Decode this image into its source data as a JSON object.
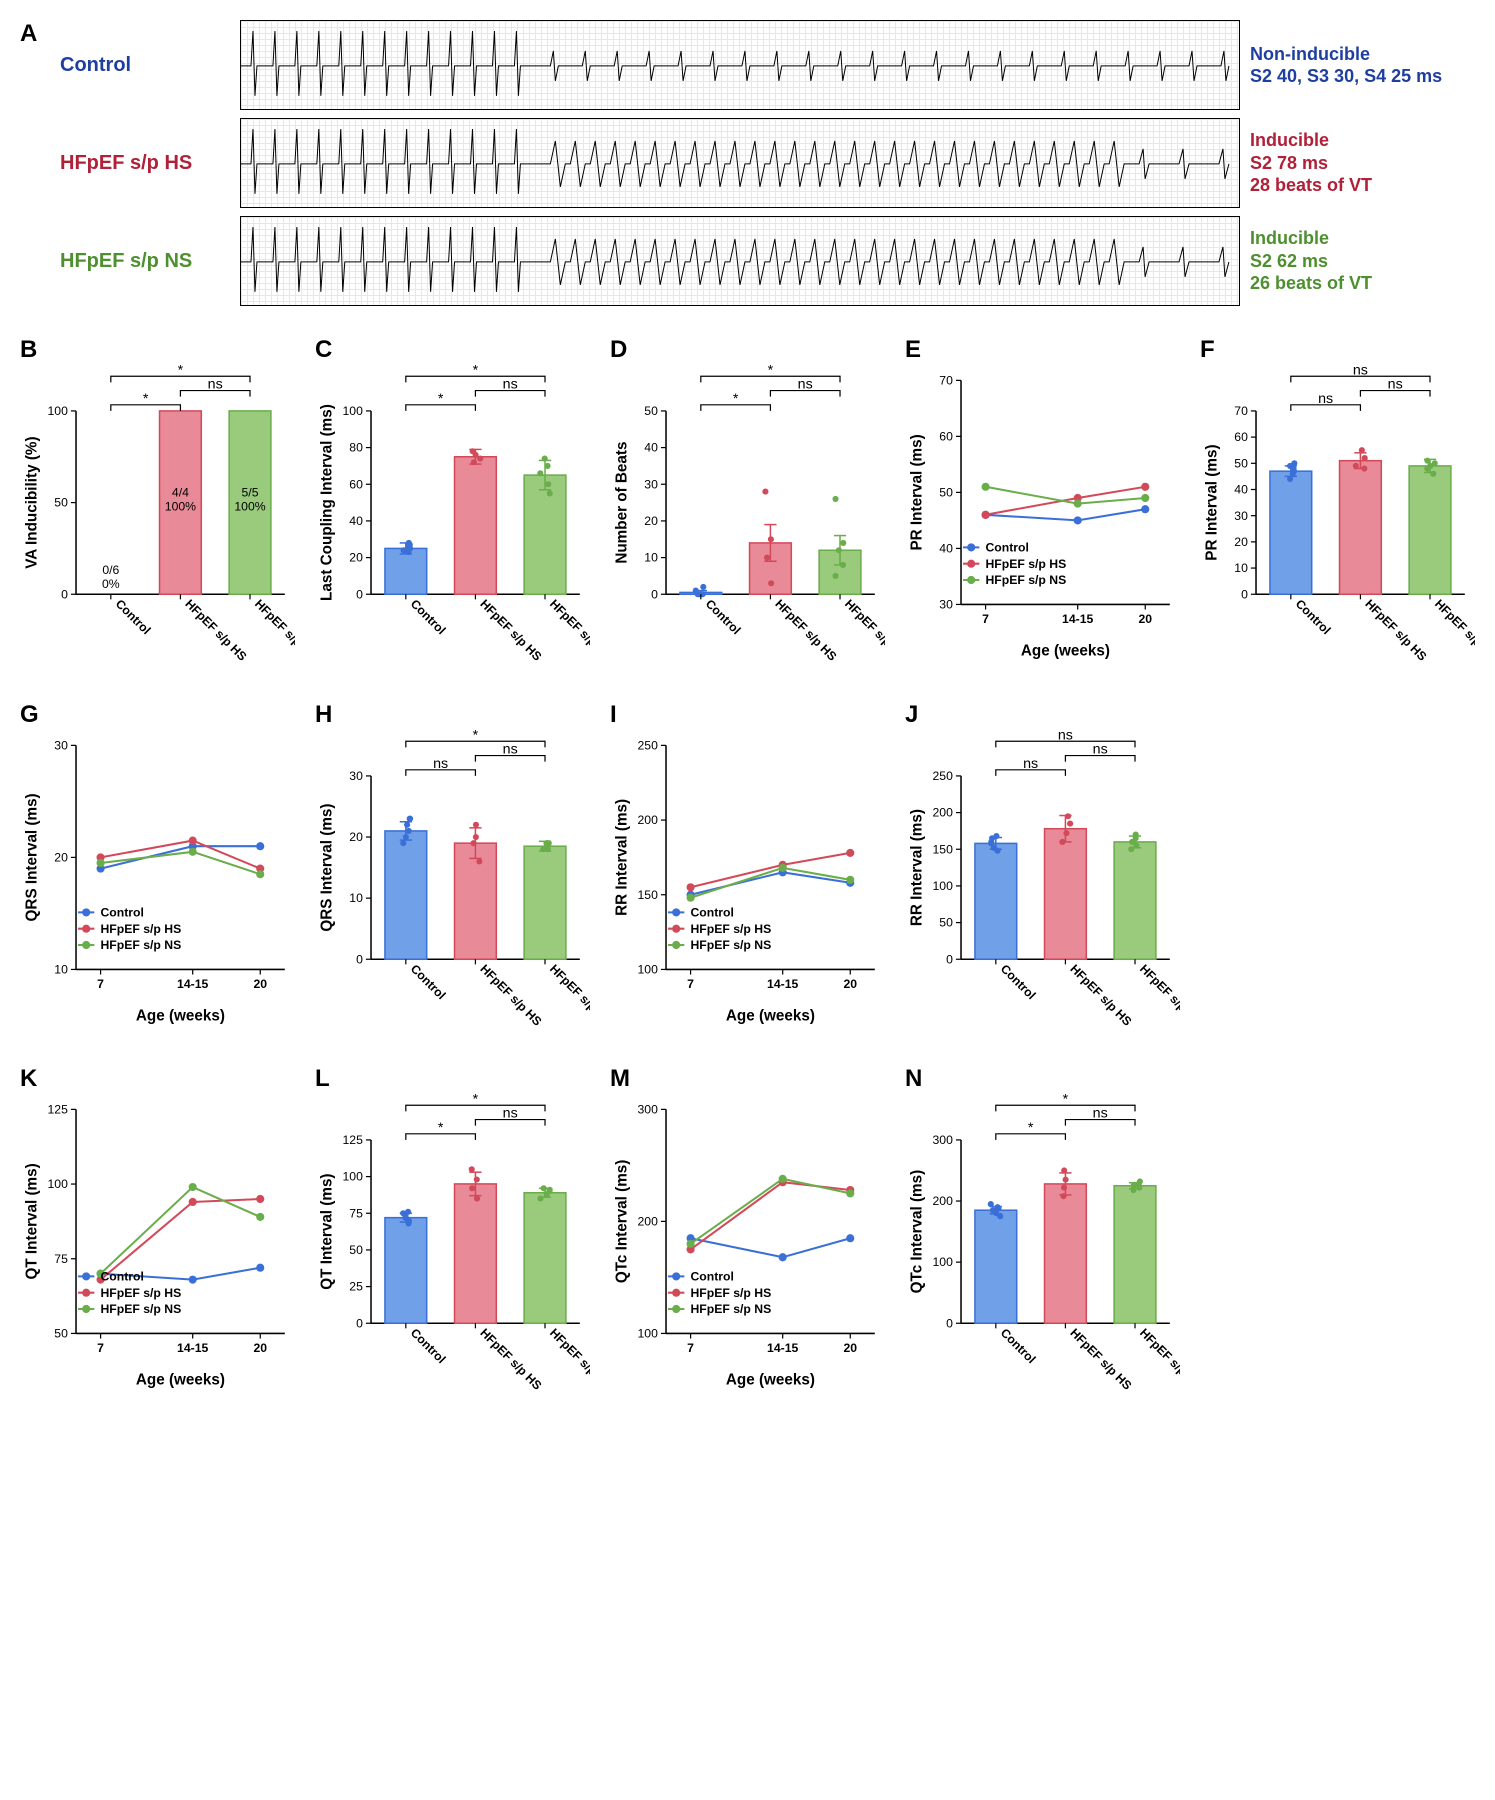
{
  "colors": {
    "control": "#3a6fd8",
    "hs": "#d24a5a",
    "ns": "#6aad4b",
    "control_fill": "#6fa0e8",
    "hs_fill": "#e98a98",
    "ns_fill": "#9acb7d",
    "axis": "#000000",
    "ecg_grid": "#f7c8e0"
  },
  "groups": {
    "control": "Control",
    "hs": "HFpEF s/p HS",
    "ns": "HFpEF s/p NS"
  },
  "panelA": {
    "label": "A",
    "rows": [
      {
        "left": "Control",
        "color": "#1f3fa0",
        "right": [
          "Non-inducible",
          "S2 40, S3 30, S4 25 ms"
        ]
      },
      {
        "left": "HFpEF s/p HS",
        "color": "#b02038",
        "right": [
          "Inducible",
          "S2 78 ms",
          "28 beats of VT"
        ]
      },
      {
        "left": "HFpEF s/p NS",
        "color": "#4e8f2f",
        "right": [
          "Inducible",
          "S2 62 ms",
          "26 beats of VT"
        ]
      }
    ]
  },
  "barPanels": {
    "B": {
      "ytitle": "VA Inducibility (%)",
      "ymax": 100,
      "ytick": 50,
      "values": [
        0,
        100,
        100
      ],
      "annot": [
        "0/6\n0%",
        "4/4\n100%",
        "5/5\n100%"
      ],
      "sig": [
        [
          "*",
          0,
          1
        ],
        [
          "*",
          0,
          2
        ],
        [
          "ns",
          1,
          2
        ]
      ]
    },
    "C": {
      "ytitle": "Last Coupling Interval (ms)",
      "ymax": 100,
      "ytick": 20,
      "values": [
        25,
        75,
        65
      ],
      "err": [
        3,
        4,
        8
      ],
      "points": {
        "0": [
          23,
          24,
          25,
          26,
          27,
          28
        ],
        "1": [
          72,
          74,
          76,
          78
        ],
        "2": [
          55,
          60,
          66,
          70,
          74
        ]
      },
      "sig": [
        [
          "*",
          0,
          1
        ],
        [
          "*",
          0,
          2
        ],
        [
          "ns",
          1,
          2
        ]
      ]
    },
    "D": {
      "ytitle": "Number of Beats",
      "ymax": 50,
      "ytick": 10,
      "values": [
        0.5,
        14,
        12
      ],
      "err": [
        0.5,
        5,
        4
      ],
      "points": {
        "0": [
          0,
          0,
          0,
          0,
          1,
          2
        ],
        "1": [
          3,
          10,
          15,
          28
        ],
        "2": [
          5,
          8,
          12,
          14,
          26
        ]
      },
      "sig": [
        [
          "*",
          0,
          1
        ],
        [
          "*",
          0,
          2
        ],
        [
          "ns",
          1,
          2
        ]
      ]
    },
    "F": {
      "ytitle": "PR Interval (ms)",
      "ymax": 70,
      "ytick": 10,
      "values": [
        47,
        51,
        49
      ],
      "err": [
        2,
        3,
        2.5
      ],
      "points": {
        "0": [
          44,
          46,
          47,
          48,
          49,
          50
        ],
        "1": [
          48,
          49,
          52,
          55
        ],
        "2": [
          46,
          48,
          49,
          50,
          51
        ]
      },
      "sig": [
        [
          "ns",
          0,
          1
        ],
        [
          "ns",
          0,
          2
        ],
        [
          "ns",
          1,
          2
        ]
      ]
    },
    "H": {
      "ytitle": "QRS Interval (ms)",
      "ymax": 30,
      "ytick": 10,
      "values": [
        21,
        19,
        18.5
      ],
      "err": [
        1.5,
        2.5,
        0.8
      ],
      "points": {
        "0": [
          19,
          20,
          21,
          22,
          23,
          23
        ],
        "1": [
          16,
          19,
          20,
          22
        ],
        "2": [
          18,
          18,
          19,
          19,
          19
        ]
      },
      "sig": [
        [
          "ns",
          0,
          1
        ],
        [
          "*",
          0,
          2
        ],
        [
          "ns",
          1,
          2
        ]
      ]
    },
    "J": {
      "ytitle": "RR Interval (ms)",
      "ymax": 250,
      "ytick": 50,
      "values": [
        158,
        178,
        160
      ],
      "err": [
        8,
        18,
        8
      ],
      "points": {
        "0": [
          148,
          152,
          158,
          160,
          165,
          168
        ],
        "1": [
          160,
          172,
          185,
          195
        ],
        "2": [
          150,
          155,
          160,
          165,
          170
        ]
      },
      "sig": [
        [
          "ns",
          0,
          1
        ],
        [
          "ns",
          0,
          2
        ],
        [
          "ns",
          1,
          2
        ]
      ]
    },
    "L": {
      "ytitle": "QT Interval (ms)",
      "ymax": 125,
      "ytick": 25,
      "values": [
        72,
        95,
        89
      ],
      "err": [
        3,
        8,
        3
      ],
      "points": {
        "0": [
          68,
          70,
          72,
          73,
          75,
          76
        ],
        "1": [
          85,
          92,
          98,
          105
        ],
        "2": [
          85,
          88,
          90,
          91,
          92
        ]
      },
      "sig": [
        [
          "*",
          0,
          1
        ],
        [
          "*",
          0,
          2
        ],
        [
          "ns",
          1,
          2
        ]
      ]
    },
    "N": {
      "ytitle": "QTc Interval (ms)",
      "ymax": 300,
      "ytick": 100,
      "values": [
        185,
        228,
        225
      ],
      "err": [
        6,
        18,
        5
      ],
      "points": {
        "0": [
          175,
          180,
          185,
          188,
          190,
          195
        ],
        "1": [
          208,
          222,
          235,
          250
        ],
        "2": [
          218,
          222,
          225,
          228,
          232
        ]
      },
      "sig": [
        [
          "*",
          0,
          1
        ],
        [
          "*",
          0,
          2
        ],
        [
          "ns",
          1,
          2
        ]
      ]
    }
  },
  "linePanels": {
    "E": {
      "ytitle": "PR Interval (ms)",
      "ymin": 30,
      "ymax": 70,
      "ytick": 10,
      "x": [
        7,
        14.5,
        20
      ],
      "series": {
        "control": [
          46,
          45,
          47
        ],
        "hs": [
          46,
          49,
          51
        ],
        "ns": [
          51,
          48,
          49
        ]
      }
    },
    "G": {
      "ytitle": "QRS Interval (ms)",
      "ymin": 10,
      "ymax": 30,
      "ytick": 10,
      "x": [
        7,
        14.5,
        20
      ],
      "series": {
        "control": [
          19,
          21,
          21
        ],
        "hs": [
          20,
          21.5,
          19
        ],
        "ns": [
          19.5,
          20.5,
          18.5
        ]
      }
    },
    "I": {
      "ytitle": "RR Interval (ms)",
      "ymin": 100,
      "ymax": 250,
      "ytick": 50,
      "x": [
        7,
        14.5,
        20
      ],
      "series": {
        "control": [
          150,
          165,
          158
        ],
        "hs": [
          155,
          170,
          178
        ],
        "ns": [
          148,
          168,
          160
        ]
      }
    },
    "K": {
      "ytitle": "QT Interval (ms)",
      "ymin": 50,
      "ymax": 125,
      "ytick": 25,
      "x": [
        7,
        14.5,
        20
      ],
      "series": {
        "control": [
          70,
          68,
          72
        ],
        "hs": [
          68,
          94,
          95
        ],
        "ns": [
          70,
          99,
          89
        ]
      }
    },
    "M": {
      "ytitle": "QTc Interval (ms)",
      "ymin": 100,
      "ymax": 300,
      "ytick": 100,
      "x": [
        7,
        14.5,
        20
      ],
      "series": {
        "control": [
          185,
          168,
          185
        ],
        "hs": [
          175,
          235,
          228
        ],
        "ns": [
          180,
          238,
          225
        ]
      }
    }
  },
  "lineXAxis": {
    "title": "Age (weeks)",
    "labels": [
      "7",
      "14-15",
      "20"
    ],
    "positions": [
      7,
      14.5,
      20
    ],
    "min": 5,
    "max": 22
  },
  "barXLabels": [
    "Control",
    "HFpEF s/p HS",
    "HFpEF s/p NS"
  ],
  "legend": [
    "Control",
    "HFpEF s/p HS",
    "HFpEF s/p NS"
  ]
}
